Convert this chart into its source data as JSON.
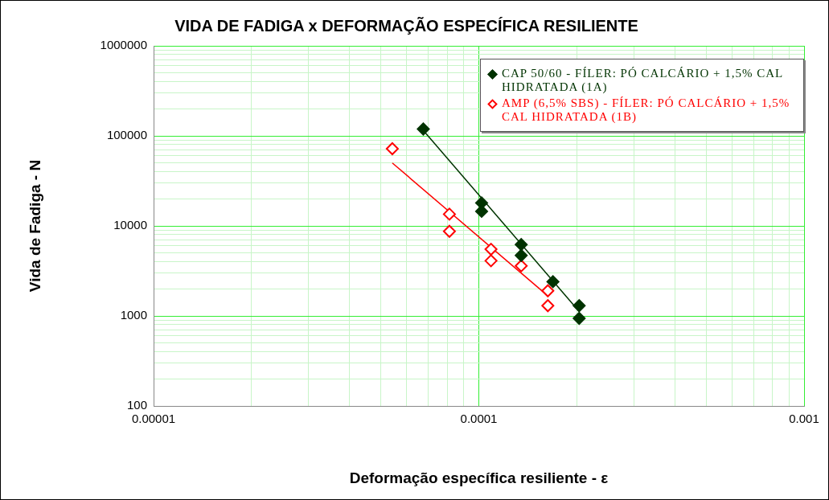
{
  "chart_data": {
    "type": "scatter",
    "title": "VIDA DE FADIGA x DEFORMAÇÃO ESPECÍFICA RESILIENTE",
    "xlabel": "Deformação específica resiliente - ε",
    "ylabel": "Vida de Fadiga - N",
    "log": "xy",
    "xlim": [
      1e-05,
      0.001
    ],
    "xticks": [
      {
        "value": 1e-05,
        "label": "0.00001"
      },
      {
        "value": 2e-05,
        "label": null
      },
      {
        "value": 3e-05,
        "label": null
      },
      {
        "value": 4e-05,
        "label": null
      },
      {
        "value": 5e-05,
        "label": null
      },
      {
        "value": 6e-05,
        "label": null
      },
      {
        "value": 7e-05,
        "label": null
      },
      {
        "value": 8e-05,
        "label": null
      },
      {
        "value": 9e-05,
        "label": null
      },
      {
        "value": 0.0001,
        "label": "0.0001"
      },
      {
        "value": 0.0002,
        "label": null
      },
      {
        "value": 0.0003,
        "label": null
      },
      {
        "value": 0.0004,
        "label": null
      },
      {
        "value": 0.0005,
        "label": null
      },
      {
        "value": 0.0006,
        "label": null
      },
      {
        "value": 0.0007,
        "label": null
      },
      {
        "value": 0.0008,
        "label": null
      },
      {
        "value": 0.0009,
        "label": null
      },
      {
        "value": 0.001,
        "label": "0.001"
      }
    ],
    "ylim": [
      100,
      1000000
    ],
    "yticks": [
      100,
      {
        "value": 200,
        "label": null
      },
      {
        "value": 300,
        "label": null
      },
      {
        "value": 400,
        "label": null
      },
      {
        "value": 500,
        "label": null
      },
      {
        "value": 600,
        "label": null
      },
      {
        "value": 700,
        "label": null
      },
      {
        "value": 800,
        "label": null
      },
      {
        "value": 900,
        "label": null
      },
      1000,
      {
        "value": 2000,
        "label": null
      },
      {
        "value": 3000,
        "label": null
      },
      {
        "value": 4000,
        "label": null
      },
      {
        "value": 5000,
        "label": null
      },
      {
        "value": 6000,
        "label": null
      },
      {
        "value": 7000,
        "label": null
      },
      {
        "value": 8000,
        "label": null
      },
      {
        "value": 9000,
        "label": null
      },
      10000,
      {
        "value": 20000,
        "label": null
      },
      {
        "value": 30000,
        "label": null
      },
      {
        "value": 40000,
        "label": null
      },
      {
        "value": 50000,
        "label": null
      },
      {
        "value": 60000,
        "label": null
      },
      {
        "value": 70000,
        "label": null
      },
      {
        "value": 80000,
        "label": null
      },
      {
        "value": 90000,
        "label": null
      },
      100000,
      {
        "value": 200000,
        "label": null
      },
      {
        "value": 300000,
        "label": null
      },
      {
        "value": 400000,
        "label": null
      },
      {
        "value": 500000,
        "label": null
      },
      {
        "value": 600000,
        "label": null
      },
      {
        "value": 700000,
        "label": null
      },
      {
        "value": 800000,
        "label": null
      },
      {
        "value": 900000,
        "label": null
      },
      1000000
    ],
    "grid": true,
    "legend": "top right",
    "marker": "diamond",
    "series": [
      {
        "name": "CAP 50/60 - FÍLER: PÓ CALCÁRIO + 1,5% CAL HIDRATADA (1A)",
        "color": "#003300",
        "x": [
          6.75e-05,
          0.000102,
          0.000102,
          0.000135,
          0.000135,
          0.000169,
          0.0002035,
          0.0002035
        ],
        "values": [
          119000,
          18000,
          14500,
          6200,
          4700,
          2400,
          1300,
          940
        ]
      },
      {
        "name": "AMP (6,5% SBS) - FÍLER: PÓ CALCÁRIO + 1,5% CAL HIDRATADA (1B)",
        "color": "#ff0000",
        "x": [
          5.42e-05,
          8.12e-05,
          8.12e-05,
          0.000109,
          0.000109,
          0.000135,
          0.000163,
          0.000163
        ],
        "values": [
          72000,
          13500,
          8700,
          5500,
          4100,
          3600,
          1900,
          1300
        ]
      },
      {
        "type": "line",
        "marker": "none",
        "color": "#003300",
        "x": [
          6.75e-05,
          0.0002035
        ],
        "values": [
          115000,
          1120
        ]
      },
      {
        "type": "line",
        "marker": "none",
        "color": "#ff0000",
        "x": [
          5.42e-05,
          0.000162
        ],
        "values": [
          50000,
          1700
        ]
      }
    ]
  }
}
